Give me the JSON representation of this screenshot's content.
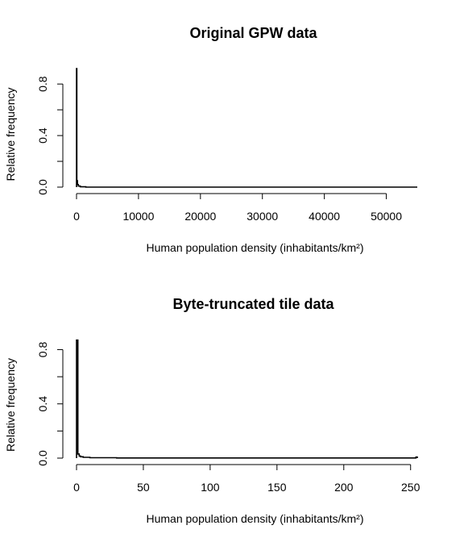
{
  "chart_data": [
    {
      "type": "line",
      "title": "Original GPW data",
      "xlabel": "Human population density (inhabitants/km²)",
      "ylabel": "Relative frequency",
      "xlim": [
        0,
        55000
      ],
      "ylim": [
        0,
        0.92
      ],
      "xticks": [
        0,
        10000,
        20000,
        30000,
        40000,
        50000
      ],
      "xtick_labels": [
        "0",
        "10000",
        "20000",
        "30000",
        "40000",
        "50000"
      ],
      "yticks": [
        0.0,
        0.2,
        0.4,
        0.6,
        0.8
      ],
      "ytick_labels": [
        "0.0",
        "",
        "0.4",
        "",
        "0.8"
      ],
      "series": [
        {
          "x": [
            0,
            0,
            50,
            50,
            150,
            150,
            300,
            300,
            600,
            600,
            1500,
            1500,
            55000
          ],
          "y": [
            0,
            0.92,
            0.92,
            0.05,
            0.05,
            0.02,
            0.02,
            0.008,
            0.008,
            0.003,
            0.003,
            0.0,
            0.0
          ]
        }
      ]
    },
    {
      "type": "line",
      "title": "Byte-truncated tile data",
      "xlabel": "Human population density (inhabitants/km²)",
      "ylabel": "Relative frequency",
      "xlim": [
        0,
        255
      ],
      "ylim": [
        0,
        0.88
      ],
      "xticks": [
        0,
        50,
        100,
        150,
        200,
        250
      ],
      "xtick_labels": [
        "0",
        "50",
        "100",
        "150",
        "200",
        "250"
      ],
      "yticks": [
        0.0,
        0.2,
        0.4,
        0.6,
        0.8
      ],
      "ytick_labels": [
        "0.0",
        "",
        "0.4",
        "",
        "0.8"
      ],
      "series": [
        {
          "x": [
            0,
            0,
            1,
            1,
            2,
            2,
            3,
            3,
            5,
            5,
            10,
            10,
            30,
            30,
            254,
            254,
            255,
            255
          ],
          "y": [
            0,
            0.87,
            0.87,
            0.03,
            0.03,
            0.015,
            0.015,
            0.01,
            0.01,
            0.006,
            0.006,
            0.003,
            0.003,
            0.001,
            0.001,
            0.008,
            0.008,
            0.0
          ]
        }
      ]
    }
  ]
}
